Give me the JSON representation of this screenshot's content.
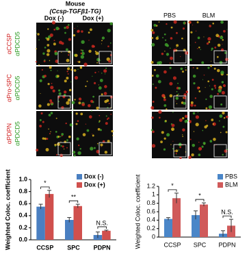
{
  "figure": {
    "left_images": {
      "title": "Mouse",
      "subtitle": "(Ccsp-TGFβ1-TG)",
      "columns": [
        "Dox (-)",
        "Dox (+)"
      ],
      "rows": [
        {
          "red": "αCCSP",
          "green": "αPDCD5"
        },
        {
          "red": "αPro-SPC",
          "green": "αPDCD5"
        },
        {
          "red": "αPDPN",
          "green": "αPDCD5"
        }
      ]
    },
    "right_images": {
      "columns": [
        "PBS",
        "BLM"
      ]
    }
  },
  "chart_data": [
    {
      "type": "bar",
      "ylabel": "Weighted Coloc. coefficient",
      "categories": [
        "CCSP",
        "SPC",
        "PDPN"
      ],
      "series": [
        {
          "name": "Dox (-)",
          "color": "#4a7fc1",
          "values": [
            0.55,
            0.33,
            0.08
          ],
          "errors": [
            0.04,
            0.04,
            0.05
          ]
        },
        {
          "name": "Dox (+)",
          "color": "#d0504d",
          "values": [
            0.76,
            0.56,
            0.15
          ],
          "errors": [
            0.06,
            0.03,
            0.01
          ]
        }
      ],
      "annotations": [
        "*",
        "**",
        "N.S."
      ],
      "ylim": [
        0,
        1
      ],
      "yticks": [
        {
          "value": 0,
          "label": "0.0"
        },
        0.2,
        0.4,
        0.6,
        0.8,
        {
          "value": 1,
          "label": "1.0"
        }
      ],
      "legend": "top-right"
    },
    {
      "type": "bar",
      "ylabel": "Weighted Coloc. coefficient",
      "categories": [
        "CCSP",
        "SPC",
        "PDPN"
      ],
      "series": [
        {
          "name": "PBS",
          "color": "#4a86c8",
          "values": [
            0.43,
            0.52,
            0.08
          ],
          "errors": [
            0.03,
            0.1,
            0.07
          ]
        },
        {
          "name": "BLM",
          "color": "#d05a5a",
          "values": [
            0.92,
            0.77,
            0.27
          ],
          "errors": [
            0.12,
            0.04,
            0.15
          ]
        }
      ],
      "annotations": [
        "*",
        "*",
        "N.S."
      ],
      "ylim": [
        0,
        1.2
      ],
      "yticks": [
        0,
        0.2,
        0.4,
        0.6,
        0.8,
        1,
        1.2
      ],
      "legend": "top-right"
    }
  ]
}
